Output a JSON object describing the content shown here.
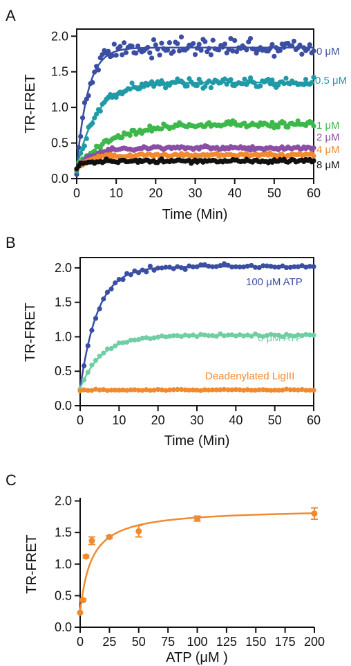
{
  "colors": {
    "blue": "#3b4ea3",
    "teal": "#1f9aa6",
    "green": "#3db84a",
    "purple": "#8a4fa5",
    "orange": "#f18a2e",
    "black": "#111111",
    "mint": "#6fcea3",
    "axis": "#111111"
  },
  "chart_data": [
    {
      "panel_label": "A",
      "type": "scatter",
      "xlabel": "Time (Min)",
      "ylabel": "TR-FRET",
      "xlim": [
        0,
        60
      ],
      "ylim": [
        0,
        2.1
      ],
      "xticks": [
        "0",
        "10",
        "20",
        "30",
        "40",
        "50",
        "60"
      ],
      "yticks": [
        "0.0",
        "0.5",
        "1.0",
        "1.5",
        "2.0"
      ],
      "xtick_values": [
        0,
        10,
        20,
        30,
        40,
        50,
        60
      ],
      "ytick_values": [
        0,
        0.5,
        1.0,
        1.5,
        2.0
      ],
      "series": [
        {
          "name": "0 μM",
          "color": "#3b4ea3",
          "fit": {
            "y0": 0.15,
            "plateau": 1.84,
            "k": 0.35
          },
          "noise": 0.09
        },
        {
          "name": "0.5 μM",
          "color": "#1f9aa6",
          "fit": {
            "y0": 0.15,
            "plateau": 1.35,
            "k": 0.2
          },
          "noise": 0.05
        },
        {
          "name": "1 μM",
          "color": "#3db84a",
          "fit": {
            "y0": 0.15,
            "plateau": 0.76,
            "k": 0.12
          },
          "noise": 0.035
        },
        {
          "name": "2 μM",
          "color": "#8a4fa5",
          "fit": {
            "y0": 0.15,
            "plateau": 0.43,
            "k": 0.25
          },
          "noise": 0.02
        },
        {
          "name": "4 μM",
          "color": "#f18a2e",
          "fit": {
            "y0": 0.15,
            "plateau": 0.33,
            "k": 0.3
          },
          "noise": 0.02
        },
        {
          "name": "8 μM",
          "color": "#111111",
          "fit": {
            "y0": 0.15,
            "plateau": 0.25,
            "k": 0.5
          },
          "noise": 0.02
        }
      ]
    },
    {
      "panel_label": "B",
      "type": "scatter",
      "xlabel": "Time (Min)",
      "ylabel": "TR-FRET",
      "xlim": [
        0,
        60
      ],
      "ylim": [
        0,
        2.15
      ],
      "xticks": [
        "0",
        "10",
        "20",
        "30",
        "40",
        "50",
        "60"
      ],
      "yticks": [
        "0.0",
        "0.5",
        "1.0",
        "1.5",
        "2.0"
      ],
      "xtick_values": [
        0,
        10,
        20,
        30,
        40,
        50,
        60
      ],
      "ytick_values": [
        0,
        0.5,
        1.0,
        1.5,
        2.0
      ],
      "series": [
        {
          "name": "100 μM ATP",
          "color": "#3b4ea3",
          "fit": {
            "y0": 0.25,
            "plateau": 2.02,
            "k": 0.22
          },
          "noise": 0.03
        },
        {
          "name": "0 μM ATP",
          "color": "#6fcea3",
          "fit": {
            "y0": 0.25,
            "plateau": 1.02,
            "k": 0.18
          },
          "noise": 0.015
        },
        {
          "name": "Deadenylated LigIII",
          "color": "#f18a2e",
          "fit": {
            "y0": 0.22,
            "plateau": 0.23,
            "k": 1.0
          },
          "noise": 0.008
        }
      ]
    },
    {
      "panel_label": "C",
      "type": "scatter",
      "xlabel": "ATP (μM )",
      "ylabel": "TR-FRET",
      "xlim": [
        0,
        200
      ],
      "ylim": [
        0,
        2.05
      ],
      "xticks": [
        "0",
        "25",
        "50",
        "75",
        "100",
        "125",
        "150",
        "175",
        "200"
      ],
      "yticks": [
        "0.0",
        "0.5",
        "1.0",
        "1.5",
        "2.0"
      ],
      "xtick_values": [
        0,
        25,
        50,
        75,
        100,
        125,
        150,
        175,
        200
      ],
      "ytick_values": [
        0,
        0.5,
        1.0,
        1.5,
        2.0
      ],
      "series": [
        {
          "name": "",
          "color": "#f18a2e",
          "x": [
            0,
            2.5,
            5,
            10,
            25,
            50,
            100,
            200
          ],
          "y": [
            0.23,
            0.43,
            1.12,
            1.37,
            1.43,
            1.52,
            1.72,
            1.8
          ],
          "err": [
            0.01,
            0.02,
            0.02,
            0.06,
            0.02,
            0.09,
            0.04,
            0.09
          ],
          "fit": {
            "y0": 0.23,
            "vmax": 1.65,
            "km": 9.5
          }
        }
      ]
    }
  ]
}
